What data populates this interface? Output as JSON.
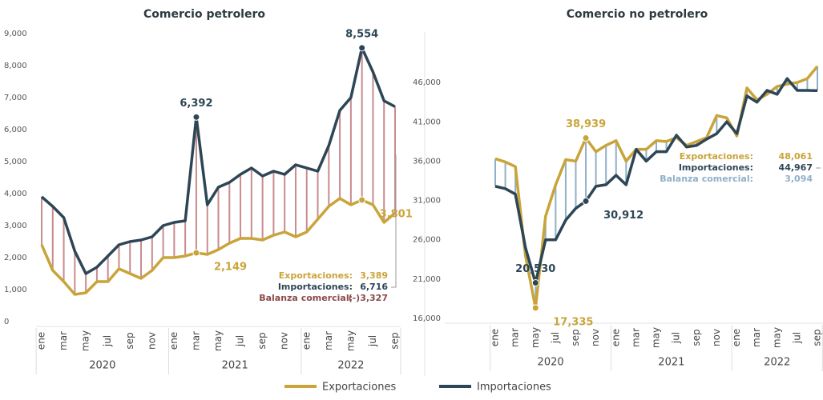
{
  "chart_data": [
    {
      "type": "line",
      "title": "Comercio petrolero",
      "categories": [
        "ene",
        null,
        "mar",
        null,
        "may",
        null,
        "jul",
        null,
        "sep",
        null,
        "nov",
        null,
        "ene",
        null,
        "mar",
        null,
        "may",
        null,
        "jul",
        null,
        "sep",
        null,
        "nov",
        null,
        "ene",
        null,
        "mar",
        null,
        "may",
        null,
        "jul",
        null,
        "sep"
      ],
      "groups": [
        "2020",
        "2021",
        "2022"
      ],
      "ylim": [
        0,
        9000
      ],
      "yticks": [
        0,
        {
          "value": 1000,
          "label": "1,000"
        },
        {
          "value": 2000,
          "label": "2,000"
        },
        {
          "value": 3000,
          "label": "3,000"
        },
        {
          "value": 4000,
          "label": "4,000"
        },
        {
          "value": 5000,
          "label": "5,000"
        },
        {
          "value": 6000,
          "label": "6,000"
        },
        {
          "value": 7000,
          "label": "7,000"
        },
        {
          "value": 8000,
          "label": "8,000"
        },
        {
          "value": 9000,
          "label": "9,000"
        }
      ],
      "balance_color": "#c98b8e",
      "balance_label_color": "#8b4a4a",
      "series": [
        {
          "name": "Exportaciones",
          "color": "#c9a43a",
          "values": [
            2400,
            1600,
            1250,
            850,
            900,
            1250,
            1250,
            1650,
            1500,
            1350,
            1600,
            2000,
            2000,
            2050,
            2149,
            2100,
            2250,
            2450,
            2600,
            2600,
            2550,
            2700,
            2800,
            2650,
            2800,
            3200,
            3600,
            3850,
            3650,
            3801,
            3650,
            3100,
            3389
          ],
          "value_labels": [
            null,
            null,
            null,
            null,
            null,
            null,
            null,
            null,
            null,
            null,
            null,
            null,
            null,
            null,
            "2,149",
            null,
            null,
            null,
            null,
            null,
            null,
            null,
            null,
            null,
            null,
            null,
            null,
            null,
            null,
            "3,801",
            null,
            null,
            null
          ]
        },
        {
          "name": "Importaciones",
          "color": "#2d4656",
          "values": [
            3900,
            3600,
            3250,
            2200,
            1500,
            1700,
            2050,
            2400,
            2500,
            2550,
            2650,
            3000,
            3100,
            3150,
            6392,
            3650,
            4200,
            4350,
            4600,
            4800,
            4550,
            4700,
            4600,
            4900,
            4800,
            4700,
            5500,
            6600,
            7000,
            8554,
            7800,
            6900,
            6716
          ],
          "value_labels": [
            null,
            null,
            null,
            null,
            null,
            null,
            null,
            null,
            null,
            null,
            null,
            null,
            null,
            null,
            "6,392",
            null,
            null,
            null,
            null,
            null,
            null,
            null,
            null,
            null,
            null,
            null,
            null,
            null,
            null,
            "8,554",
            null,
            null,
            null
          ]
        }
      ],
      "summary": [
        {
          "label": "Exportaciones:",
          "value": "3,389"
        },
        {
          "label": "Importaciones:",
          "value": "6,716"
        },
        {
          "label": "Balanza comercial:",
          "value": "(-)3,327"
        }
      ]
    },
    {
      "type": "line",
      "title": "Comercio no petrolero",
      "categories": [
        "ene",
        null,
        "mar",
        null,
        "may",
        null,
        "jul",
        null,
        "sep",
        null,
        "nov",
        null,
        "ene",
        null,
        "mar",
        null,
        "may",
        null,
        "jul",
        null,
        "sep",
        null,
        "nov",
        null,
        "ene",
        null,
        "mar",
        null,
        "may",
        null,
        "jul",
        null,
        "sep"
      ],
      "groups": [
        "2020",
        "2021",
        "2022"
      ],
      "ylim": [
        16000,
        51000
      ],
      "yticks": [
        {
          "value": 16000,
          "label": "16,000"
        },
        {
          "value": 21000,
          "label": "21,000"
        },
        {
          "value": 26000,
          "label": "26,000"
        },
        {
          "value": 31000,
          "label": "31,000"
        },
        {
          "value": 36000,
          "label": "36,000"
        },
        {
          "value": 41000,
          "label": "41,000"
        },
        {
          "value": 46000,
          "label": "46,000"
        }
      ],
      "balance_color": "#8fb0c8",
      "balance_label_color": "#8fb0c8",
      "series": [
        {
          "name": "Exportaciones",
          "color": "#c9a43a",
          "values": [
            36300,
            35900,
            35300,
            24000,
            17335,
            29000,
            33000,
            36200,
            36000,
            38939,
            37200,
            38000,
            38600,
            36000,
            37500,
            37500,
            38600,
            38500,
            39000,
            38000,
            38500,
            39000,
            41800,
            41500,
            39200,
            45300,
            43800,
            44500,
            45500,
            45800,
            46000,
            46500,
            48061
          ],
          "value_labels": [
            null,
            null,
            null,
            null,
            "17,335",
            null,
            null,
            null,
            null,
            "38,939",
            null,
            null,
            null,
            null,
            null,
            null,
            null,
            null,
            null,
            null,
            null,
            null,
            null,
            null,
            null,
            null,
            null,
            null,
            null,
            null,
            null,
            null,
            null
          ]
        },
        {
          "name": "Importaciones",
          "color": "#2d4656",
          "values": [
            32800,
            32500,
            31800,
            25000,
            20530,
            26000,
            26000,
            28500,
            30000,
            30912,
            32800,
            33000,
            34200,
            33000,
            37500,
            36000,
            37200,
            37200,
            39300,
            37800,
            38000,
            38800,
            39500,
            41000,
            39500,
            44300,
            43500,
            45000,
            44500,
            46500,
            45000,
            45000,
            44967
          ],
          "value_labels": [
            null,
            null,
            null,
            null,
            "20,530",
            null,
            null,
            null,
            null,
            "30,912",
            null,
            null,
            null,
            null,
            null,
            null,
            null,
            null,
            null,
            null,
            null,
            null,
            null,
            null,
            null,
            null,
            null,
            null,
            null,
            null,
            null,
            null,
            null
          ]
        }
      ],
      "summary": [
        {
          "label": "Exportaciones:",
          "value": "48,061"
        },
        {
          "label": "Importaciones:",
          "value": "44,967"
        },
        {
          "label": "Balanza comercial:",
          "value": "3,094"
        }
      ]
    }
  ]
}
